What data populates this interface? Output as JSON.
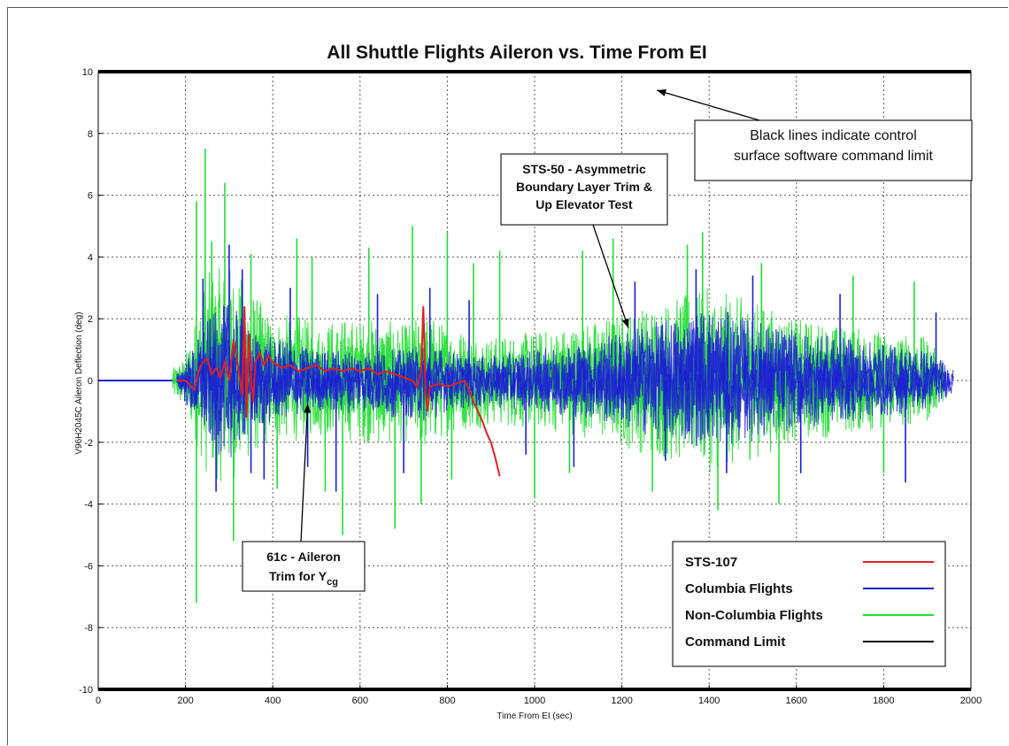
{
  "chart_data": {
    "type": "line",
    "title": "All Shuttle Flights Aileron vs. Time From EI",
    "xlabel": "Time From EI (sec)",
    "ylabel": "V96H2045C Aileron Deflection (deg)",
    "xlim": [
      0,
      2000
    ],
    "ylim": [
      -10,
      10
    ],
    "xticks": [
      0,
      200,
      400,
      600,
      800,
      1000,
      1200,
      1400,
      1600,
      1800,
      2000
    ],
    "yticks": [
      -10,
      -8,
      -6,
      -4,
      -2,
      0,
      2,
      4,
      6,
      8,
      10
    ],
    "grid": true,
    "legend_position": "bottom-right",
    "series": [
      {
        "name": "Non-Columbia Flights",
        "color": "#22dd33",
        "envelope": {
          "x": [
            170,
            200,
            250,
            300,
            350,
            400,
            450,
            500,
            550,
            600,
            650,
            700,
            750,
            800,
            850,
            900,
            1000,
            1100,
            1200,
            1300,
            1400,
            1500,
            1600,
            1700,
            1800,
            1900,
            1940
          ],
          "upper": [
            0.4,
            0.8,
            3.5,
            3.8,
            3.0,
            2.0,
            2.2,
            1.8,
            2.0,
            2.0,
            2.0,
            1.8,
            2.2,
            1.8,
            1.6,
            1.4,
            1.6,
            1.8,
            2.2,
            2.6,
            3.0,
            2.6,
            2.0,
            1.8,
            1.6,
            1.4,
            0.6
          ],
          "lower": [
            -0.6,
            -1.0,
            -3.2,
            -3.4,
            -2.6,
            -2.0,
            -2.0,
            -1.8,
            -2.0,
            -2.0,
            -2.2,
            -2.0,
            -2.4,
            -1.8,
            -1.6,
            -1.5,
            -1.6,
            -1.8,
            -2.2,
            -2.6,
            -3.0,
            -2.6,
            -2.0,
            -1.8,
            -1.6,
            -1.4,
            -0.6
          ]
        },
        "spikes": [
          [
            225,
            5.8
          ],
          [
            225,
            -7.2
          ],
          [
            245,
            7.5
          ],
          [
            260,
            4.5
          ],
          [
            290,
            6.4
          ],
          [
            310,
            -5.2
          ],
          [
            350,
            4.1
          ],
          [
            410,
            -3.5
          ],
          [
            455,
            4.6
          ],
          [
            490,
            4.0
          ],
          [
            520,
            -3.6
          ],
          [
            560,
            -5.0
          ],
          [
            620,
            4.3
          ],
          [
            680,
            -4.8
          ],
          [
            720,
            5.0
          ],
          [
            740,
            -4.0
          ],
          [
            800,
            4.8
          ],
          [
            810,
            -3.2
          ],
          [
            860,
            3.8
          ],
          [
            920,
            4.2
          ],
          [
            1000,
            -3.8
          ],
          [
            1080,
            -3.0
          ],
          [
            1110,
            4.2
          ],
          [
            1180,
            4.6
          ],
          [
            1270,
            -3.6
          ],
          [
            1350,
            4.4
          ],
          [
            1385,
            4.8
          ],
          [
            1420,
            -4.2
          ],
          [
            1520,
            3.8
          ],
          [
            1560,
            -4.0
          ],
          [
            1730,
            3.4
          ],
          [
            1800,
            -3.0
          ],
          [
            1870,
            3.2
          ]
        ]
      },
      {
        "name": "Columbia Flights",
        "color": "#1c1cd6",
        "envelope": {
          "x": [
            180,
            200,
            250,
            300,
            350,
            400,
            450,
            500,
            550,
            600,
            650,
            700,
            750,
            800,
            850,
            900,
            1000,
            1100,
            1200,
            1300,
            1400,
            1500,
            1600,
            1700,
            1800,
            1900,
            1960
          ],
          "upper": [
            0.2,
            0.6,
            2.0,
            2.6,
            1.6,
            1.4,
            1.2,
            1.0,
            1.0,
            1.0,
            1.0,
            1.0,
            1.2,
            1.0,
            0.8,
            0.8,
            1.0,
            1.2,
            1.6,
            2.0,
            2.4,
            2.0,
            1.6,
            1.4,
            1.2,
            1.0,
            0.4
          ],
          "lower": [
            -0.2,
            -0.8,
            -2.2,
            -2.6,
            -1.8,
            -1.4,
            -1.2,
            -1.0,
            -1.1,
            -1.0,
            -1.2,
            -1.2,
            -1.4,
            -1.0,
            -0.9,
            -0.9,
            -1.0,
            -1.2,
            -1.6,
            -2.0,
            -2.2,
            -2.0,
            -1.6,
            -1.4,
            -1.2,
            -1.0,
            -0.4
          ]
        },
        "spikes": [
          [
            240,
            3.3
          ],
          [
            270,
            -3.6
          ],
          [
            300,
            4.4
          ],
          [
            330,
            3.6
          ],
          [
            350,
            -3.0
          ],
          [
            380,
            -3.2
          ],
          [
            440,
            3.0
          ],
          [
            480,
            -2.8
          ],
          [
            545,
            -3.6
          ],
          [
            640,
            2.8
          ],
          [
            700,
            -3.0
          ],
          [
            760,
            3.0
          ],
          [
            850,
            2.6
          ],
          [
            980,
            -2.4
          ],
          [
            1090,
            -2.8
          ],
          [
            1230,
            3.2
          ],
          [
            1300,
            -2.6
          ],
          [
            1370,
            3.6
          ],
          [
            1440,
            -3.0
          ],
          [
            1500,
            3.4
          ],
          [
            1610,
            -3.0
          ],
          [
            1700,
            2.8
          ],
          [
            1850,
            -3.3
          ],
          [
            1920,
            2.2
          ]
        ]
      },
      {
        "name": "STS-107",
        "color": "#e02020",
        "x": [
          180,
          200,
          220,
          230,
          240,
          250,
          260,
          270,
          280,
          290,
          300,
          310,
          320,
          330,
          335,
          340,
          345,
          350,
          355,
          360,
          370,
          380,
          390,
          400,
          420,
          440,
          460,
          480,
          500,
          520,
          540,
          560,
          580,
          600,
          620,
          640,
          660,
          680,
          700,
          720,
          730,
          740,
          745,
          750,
          755,
          760,
          780,
          800,
          820,
          840,
          850,
          860,
          870,
          880,
          890,
          900,
          910,
          920
        ],
        "y": [
          0,
          0,
          -0.3,
          0.3,
          0.6,
          0.7,
          0.2,
          0.4,
          0.1,
          0.6,
          0.0,
          1.3,
          0.5,
          -0.5,
          2.4,
          -1.2,
          1.5,
          0.1,
          -0.7,
          0.6,
          0.9,
          0.5,
          0.8,
          0.6,
          0.4,
          0.5,
          0.3,
          0.4,
          0.5,
          0.3,
          0.4,
          0.3,
          0.4,
          0.3,
          0.4,
          0.2,
          0.3,
          0.2,
          0.1,
          0.0,
          -0.2,
          0.3,
          2.4,
          -0.4,
          -1.0,
          -0.2,
          -0.1,
          -0.2,
          -0.1,
          0.0,
          -0.3,
          -0.7,
          -1.0,
          -1.3,
          -1.7,
          -2.0,
          -2.5,
          -3.1
        ]
      },
      {
        "name": "Command Limit",
        "color": "#000000",
        "lines_y": [
          10,
          -10
        ]
      }
    ],
    "annotations": [
      {
        "text_lines": [
          "Black lines indicate control",
          "surface software command limit"
        ],
        "arrow_to": [
          1280,
          9.4
        ]
      },
      {
        "text_lines": [
          "STS-50 - Asymmetric",
          "Boundary Layer Trim &",
          "Up Elevator Test"
        ],
        "arrow_to": [
          1215,
          1.7
        ]
      },
      {
        "text_lines": [
          "61c - Aileron",
          "Trim for Y"
        ],
        "subscript": "cg",
        "arrow_to": [
          480,
          -0.75
        ]
      }
    ]
  }
}
